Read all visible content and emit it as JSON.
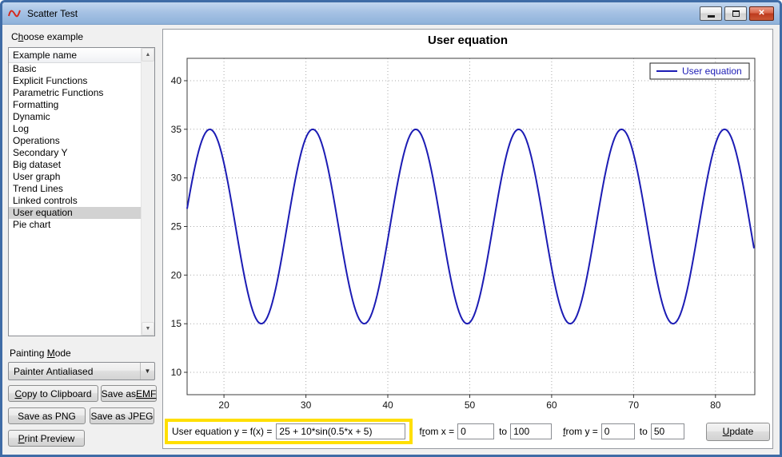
{
  "window": {
    "title": "Scatter Test"
  },
  "icons": {
    "scroll_up": "▲",
    "scroll_down": "▼",
    "combo_arrow": "▼",
    "close": "✕"
  },
  "sidebar": {
    "choose_label": "Choose example",
    "list_header": "Example name",
    "examples": [
      "Basic",
      "Explicit Functions",
      "Parametric Functions",
      "Formatting",
      "Dynamic",
      "Log",
      "Operations",
      "Secondary Y",
      "Big dataset",
      "User graph",
      "Trend Lines",
      "Linked controls",
      "User equation",
      "Pie chart"
    ],
    "selected_example": "User equation",
    "painting_mode_label": "Painting Mode",
    "painting_mode_value": "Painter Antialiased",
    "buttons": {
      "copy": "Copy to Clipboard",
      "save_emf": "Save as EMF",
      "save_png": "Save as PNG",
      "save_jpeg": "Save as JPEG",
      "print_preview": "Print Preview"
    }
  },
  "equation_bar": {
    "label": "User equation y = f(x) =",
    "equation": "25 + 10*sin(0.5*x + 5)",
    "from_x_label": "from x =",
    "from_x_value": "0",
    "to_x_label": "to",
    "to_x_value": "100",
    "from_y_label": "from y =",
    "from_y_value": "0",
    "to_y_label": "to",
    "to_y_value": "50",
    "update_label": "Update"
  },
  "chart_data": {
    "type": "line",
    "title": "User equation",
    "x_range": [
      15.5,
      84.8
    ],
    "y_range": [
      7.7,
      42.3
    ],
    "x_ticks": [
      20,
      30,
      40,
      50,
      60,
      70,
      80
    ],
    "y_ticks": [
      10,
      15,
      20,
      25,
      30,
      35,
      40
    ],
    "grid": "dotted",
    "series": [
      {
        "name": "User equation",
        "equation": "y = 25 + 10*sin(0.5*x + 5)",
        "offset": 25,
        "amplitude": 10,
        "frequency": 0.5,
        "phase": 5,
        "x_min": 15.5,
        "x_max": 84.8,
        "sample_step": 0.2,
        "color": "#1c1cb4"
      }
    ],
    "legend": {
      "label": "User equation",
      "position": "top-right",
      "color": "#1c1cb4"
    }
  }
}
